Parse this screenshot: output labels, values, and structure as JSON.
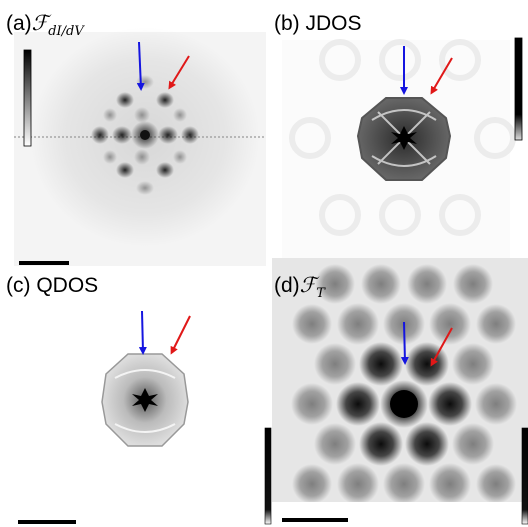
{
  "panels": [
    {
      "id": "a",
      "label": "(a)",
      "symbol": "ℱ",
      "subscript": "dI/dV"
    },
    {
      "id": "b",
      "label": "(b) JDOS"
    },
    {
      "id": "c",
      "label": "(c) QDOS"
    },
    {
      "id": "d",
      "label": "(d)",
      "symbol": "ℱ",
      "subscript": "T"
    }
  ],
  "colors": {
    "blue_arrow": "#1515e0",
    "red_arrow": "#e01818",
    "scale_bar": "#000000",
    "background": "#ffffff"
  },
  "colormap": "grayscale (white = low, black = high)"
}
